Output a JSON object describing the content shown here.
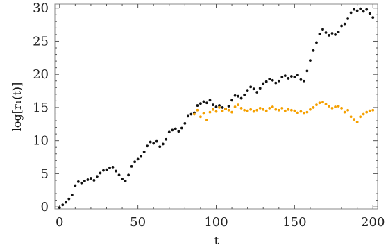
{
  "chart_data": {
    "type": "scatter",
    "title": "",
    "xlabel": "t",
    "ylabel": "log[r₁(t)]",
    "xlim": [
      -3,
      203
    ],
    "ylim": [
      -0.3,
      30.6
    ],
    "xticks": [
      0,
      50,
      100,
      150,
      200
    ],
    "yticks": [
      0,
      5,
      10,
      15,
      20,
      25,
      30
    ],
    "grid": false,
    "legend": "none",
    "series": [
      {
        "color": "#111111",
        "points": [
          [
            0,
            -0.1
          ],
          [
            2,
            0.3
          ],
          [
            4,
            0.7
          ],
          [
            6,
            1.2
          ],
          [
            8,
            1.8
          ],
          [
            10,
            3.2
          ],
          [
            12,
            3.8
          ],
          [
            14,
            3.6
          ],
          [
            16,
            3.9
          ],
          [
            18,
            4.1
          ],
          [
            20,
            4.3
          ],
          [
            22,
            4.0
          ],
          [
            24,
            4.6
          ],
          [
            26,
            5.1
          ],
          [
            28,
            5.5
          ],
          [
            30,
            5.6
          ],
          [
            32,
            5.9
          ],
          [
            34,
            6.0
          ],
          [
            36,
            5.4
          ],
          [
            38,
            4.8
          ],
          [
            40,
            4.2
          ],
          [
            42,
            3.9
          ],
          [
            44,
            4.8
          ],
          [
            46,
            6.1
          ],
          [
            48,
            6.8
          ],
          [
            50,
            7.2
          ],
          [
            52,
            7.6
          ],
          [
            54,
            8.3
          ],
          [
            56,
            9.2
          ],
          [
            58,
            9.8
          ],
          [
            60,
            9.6
          ],
          [
            62,
            9.9
          ],
          [
            64,
            9.1
          ],
          [
            66,
            9.5
          ],
          [
            68,
            10.2
          ],
          [
            70,
            11.3
          ],
          [
            72,
            11.6
          ],
          [
            74,
            11.8
          ],
          [
            76,
            11.4
          ],
          [
            78,
            11.9
          ],
          [
            80,
            12.6
          ],
          [
            82,
            13.7
          ],
          [
            84,
            14.0
          ],
          [
            86,
            14.2
          ],
          [
            88,
            15.3
          ],
          [
            90,
            15.6
          ],
          [
            92,
            15.9
          ],
          [
            94,
            15.7
          ],
          [
            96,
            16.1
          ],
          [
            98,
            15.4
          ],
          [
            100,
            15.1
          ],
          [
            102,
            15.3
          ],
          [
            104,
            15.0
          ],
          [
            106,
            14.8
          ],
          [
            108,
            15.2
          ],
          [
            110,
            16.1
          ],
          [
            112,
            16.8
          ],
          [
            114,
            16.7
          ],
          [
            116,
            16.4
          ],
          [
            118,
            16.9
          ],
          [
            120,
            17.6
          ],
          [
            122,
            18.1
          ],
          [
            124,
            17.8
          ],
          [
            126,
            17.3
          ],
          [
            128,
            17.9
          ],
          [
            130,
            18.6
          ],
          [
            132,
            18.9
          ],
          [
            134,
            19.3
          ],
          [
            136,
            19.1
          ],
          [
            138,
            18.7
          ],
          [
            140,
            19.0
          ],
          [
            142,
            19.6
          ],
          [
            144,
            19.8
          ],
          [
            146,
            19.4
          ],
          [
            148,
            19.7
          ],
          [
            150,
            19.6
          ],
          [
            152,
            19.9
          ],
          [
            154,
            19.2
          ],
          [
            156,
            19.0
          ],
          [
            158,
            20.5
          ],
          [
            160,
            22.1
          ],
          [
            162,
            23.6
          ],
          [
            164,
            24.8
          ],
          [
            166,
            26.1
          ],
          [
            168,
            26.8
          ],
          [
            170,
            26.3
          ],
          [
            172,
            25.9
          ],
          [
            174,
            26.2
          ],
          [
            176,
            26.0
          ],
          [
            178,
            26.4
          ],
          [
            180,
            27.3
          ],
          [
            182,
            27.6
          ],
          [
            184,
            28.4
          ],
          [
            186,
            29.3
          ],
          [
            188,
            29.8
          ],
          [
            190,
            29.6
          ],
          [
            192,
            29.9
          ],
          [
            194,
            29.5
          ],
          [
            196,
            29.8
          ],
          [
            198,
            29.2
          ],
          [
            200,
            28.6
          ]
        ]
      },
      {
        "color": "#f5a000",
        "points": [
          [
            86,
            14.0
          ],
          [
            88,
            14.6
          ],
          [
            90,
            13.6
          ],
          [
            92,
            14.1
          ],
          [
            94,
            13.1
          ],
          [
            96,
            14.3
          ],
          [
            98,
            14.7
          ],
          [
            100,
            14.4
          ],
          [
            102,
            15.0
          ],
          [
            104,
            14.5
          ],
          [
            106,
            14.8
          ],
          [
            108,
            14.6
          ],
          [
            110,
            14.3
          ],
          [
            112,
            15.1
          ],
          [
            114,
            15.4
          ],
          [
            116,
            14.9
          ],
          [
            118,
            14.6
          ],
          [
            120,
            14.5
          ],
          [
            122,
            14.7
          ],
          [
            124,
            14.4
          ],
          [
            126,
            14.6
          ],
          [
            128,
            14.9
          ],
          [
            130,
            14.7
          ],
          [
            132,
            14.5
          ],
          [
            134,
            14.9
          ],
          [
            136,
            15.1
          ],
          [
            138,
            14.7
          ],
          [
            140,
            14.6
          ],
          [
            142,
            14.9
          ],
          [
            144,
            14.5
          ],
          [
            146,
            14.7
          ],
          [
            148,
            14.6
          ],
          [
            150,
            14.5
          ],
          [
            152,
            14.2
          ],
          [
            154,
            14.4
          ],
          [
            156,
            14.1
          ],
          [
            158,
            14.3
          ],
          [
            160,
            14.7
          ],
          [
            162,
            15.0
          ],
          [
            164,
            15.4
          ],
          [
            166,
            15.7
          ],
          [
            168,
            15.8
          ],
          [
            170,
            15.5
          ],
          [
            172,
            15.2
          ],
          [
            174,
            14.9
          ],
          [
            176,
            15.1
          ],
          [
            178,
            15.2
          ],
          [
            180,
            14.9
          ],
          [
            182,
            14.3
          ],
          [
            184,
            14.6
          ],
          [
            186,
            13.6
          ],
          [
            188,
            13.2
          ],
          [
            190,
            12.8
          ],
          [
            192,
            13.6
          ],
          [
            194,
            14.0
          ],
          [
            196,
            14.3
          ],
          [
            198,
            14.5
          ],
          [
            200,
            14.6
          ]
        ]
      }
    ]
  }
}
